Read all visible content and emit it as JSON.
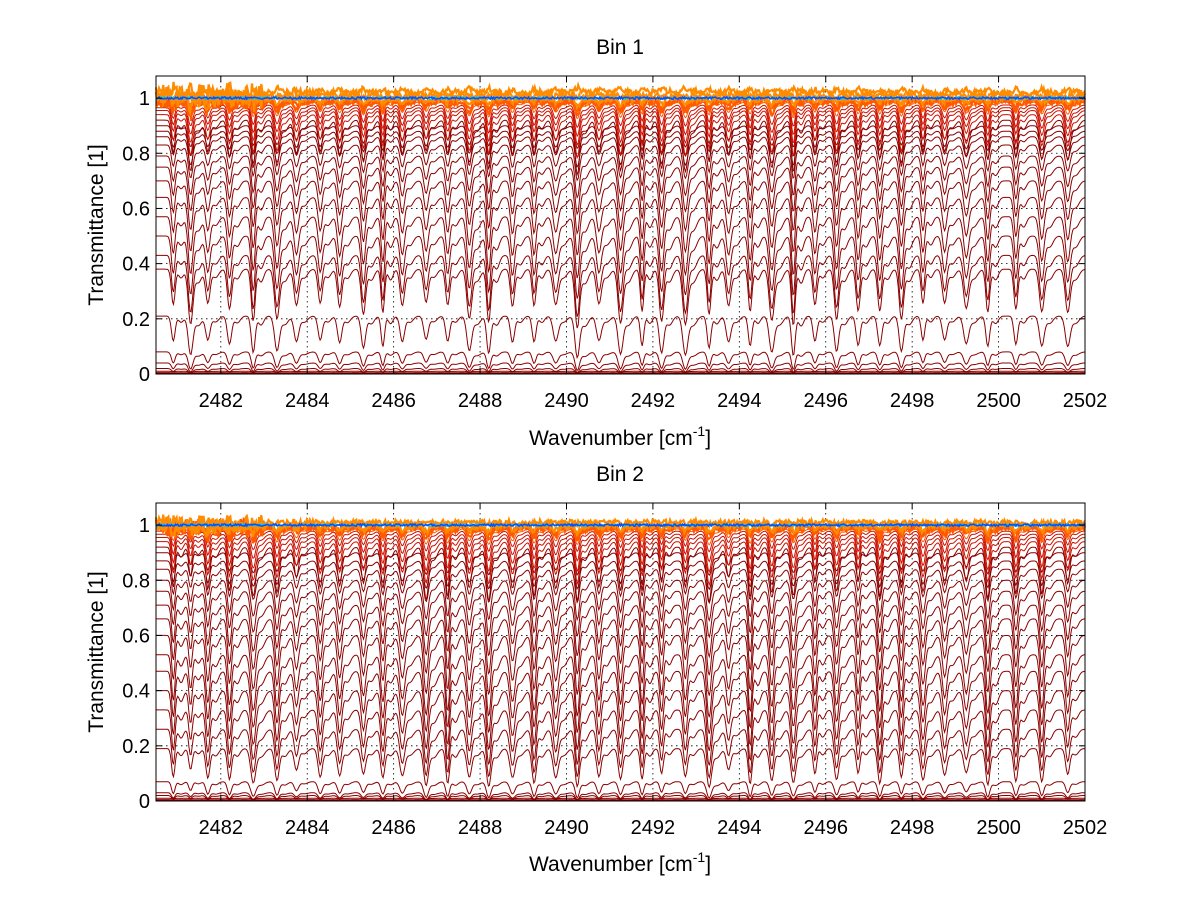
{
  "chart_data": [
    {
      "type": "line",
      "title": "Bin 1",
      "xlabel": "Wavenumber [cm",
      "xlabel_sup": "-1",
      "xlabel_end": "]",
      "ylabel": "Transmittance [1]",
      "xlim": [
        2480.5,
        2502
      ],
      "ylim": [
        0,
        1.08
      ],
      "xticks": [
        "2482",
        "2484",
        "2486",
        "2488",
        "2490",
        "2492",
        "2494",
        "2496",
        "2498",
        "2500",
        "2502"
      ],
      "yticks": [
        "0",
        "0.2",
        "0.4",
        "0.6",
        "0.8",
        "1"
      ],
      "grid": true,
      "n_series": 31,
      "series_levels": [
        0,
        0.002,
        0.005,
        0.01,
        0.02,
        0.04,
        0.08,
        0.21,
        0.38,
        0.43,
        0.5,
        0.57,
        0.64,
        0.7,
        0.75,
        0.79,
        0.83,
        0.86,
        0.88,
        0.9,
        0.92,
        0.94,
        0.955,
        0.965,
        0.975,
        0.985,
        0.99,
        0.995,
        1.0,
        1.01,
        1.02
      ],
      "absorption_line_centers": [
        2480.9,
        2481.3,
        2481.7,
        2482.2,
        2482.75,
        2483.3,
        2483.75,
        2484.3,
        2484.75,
        2485.3,
        2485.75,
        2486.2,
        2486.75,
        2487.25,
        2487.75,
        2488.2,
        2488.75,
        2489.25,
        2489.75,
        2490.25,
        2490.75,
        2491.25,
        2491.75,
        2492.2,
        2492.75,
        2493.3,
        2493.75,
        2494.25,
        2494.75,
        2495.25,
        2495.75,
        2496.25,
        2496.75,
        2497.25,
        2497.75,
        2498.25,
        2498.75,
        2499.25,
        2499.75,
        2500.4,
        2501.0,
        2501.6
      ]
    },
    {
      "type": "line",
      "title": "Bin 2",
      "xlabel": "Wavenumber [cm",
      "xlabel_sup": "-1",
      "xlabel_end": "]",
      "ylabel": "Transmittance [1]",
      "xlim": [
        2480.5,
        2502
      ],
      "ylim": [
        0,
        1.08
      ],
      "xticks": [
        "2482",
        "2484",
        "2486",
        "2488",
        "2490",
        "2492",
        "2494",
        "2496",
        "2498",
        "2500",
        "2502"
      ],
      "yticks": [
        "0",
        "0.2",
        "0.4",
        "0.6",
        "0.8",
        "1"
      ],
      "grid": true,
      "n_series": 31,
      "series_levels": [
        0,
        0.002,
        0.005,
        0.01,
        0.02,
        0.03,
        0.07,
        0.19,
        0.26,
        0.33,
        0.4,
        0.47,
        0.53,
        0.6,
        0.66,
        0.71,
        0.76,
        0.8,
        0.84,
        0.87,
        0.9,
        0.92,
        0.94,
        0.955,
        0.967,
        0.978,
        0.986,
        0.992,
        0.997,
        1.0,
        1.01
      ],
      "absorption_line_centers": [
        2480.9,
        2481.3,
        2481.7,
        2482.2,
        2482.75,
        2483.3,
        2483.75,
        2484.3,
        2484.75,
        2485.3,
        2485.75,
        2486.2,
        2486.75,
        2487.25,
        2487.75,
        2488.2,
        2488.75,
        2489.25,
        2489.75,
        2490.25,
        2490.75,
        2491.25,
        2491.75,
        2492.2,
        2492.75,
        2493.3,
        2493.75,
        2494.25,
        2494.75,
        2495.25,
        2495.75,
        2496.25,
        2496.75,
        2497.25,
        2497.75,
        2498.25,
        2498.75,
        2499.25,
        2499.75,
        2500.4,
        2501.0,
        2501.6
      ]
    }
  ],
  "colors": {
    "low_series": "#8b0000",
    "mid_series": "#cc1100",
    "high_series": "#ff5a00",
    "top_series": "#ff8c00",
    "top_accent_1": "#0050ff",
    "top_accent_2": "#00c8ff",
    "top_accent_3": "#ffd000",
    "grid": "#000000",
    "axis": "#000000"
  }
}
